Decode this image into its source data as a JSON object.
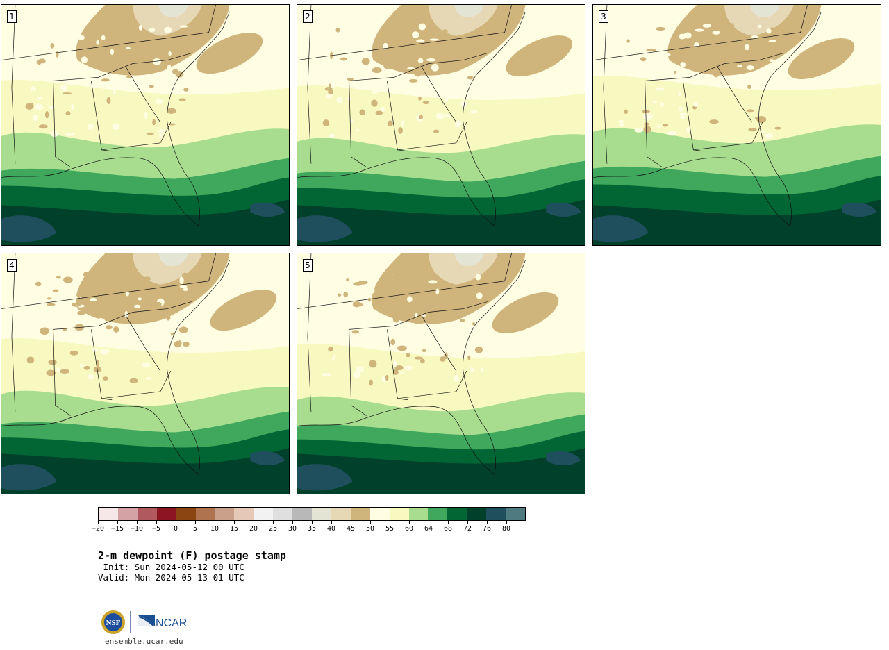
{
  "panels": [
    {
      "label": "1"
    },
    {
      "label": "2"
    },
    {
      "label": "3"
    },
    {
      "label": "4"
    },
    {
      "label": "5"
    }
  ],
  "colorbar": {
    "colors": [
      "#f6e8e8",
      "#d4a1a4",
      "#b05a5f",
      "#8c1522",
      "#8a4513",
      "#b07350",
      "#c9a08a",
      "#e6c8b6",
      "#f2f2f2",
      "#dfdfdf",
      "#b8b8b8",
      "#e4e4d5",
      "#e6d8b4",
      "#cfb47c",
      "#fffde2",
      "#f7f9c0",
      "#a8dd90",
      "#3fa85c",
      "#026634",
      "#01402a",
      "#1f4f5d",
      "#4d7b80"
    ],
    "tick_labels": [
      "−20",
      "−15",
      "−10",
      "−5",
      "0",
      "5",
      "10",
      "15",
      "20",
      "25",
      "30",
      "35",
      "40",
      "45",
      "50",
      "55",
      "60",
      "64",
      "68",
      "72",
      "76",
      "80"
    ]
  },
  "title": "2-m dewpoint (F) postage stamp",
  "init": " Init: Sun 2024-05-12 00 UTC",
  "valid": "Valid: Mon 2024-05-13 01 UTC",
  "logos": {
    "nsf": "NSF",
    "ncar": "NCAR"
  },
  "website": "ensemble.ucar.edu"
}
